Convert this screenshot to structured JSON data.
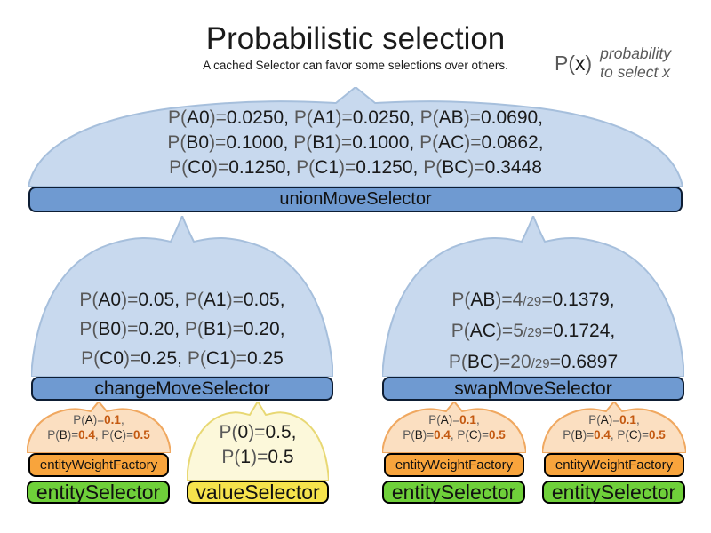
{
  "header": {
    "title": "Probabilistic selection",
    "subtitle": "A cached Selector can favor some selections over others.",
    "legend": {
      "symbol_lines": [
        [
          {
            "t": "P(",
            "s": "g"
          },
          {
            "t": "x",
            "s": "b"
          },
          {
            "t": ")",
            "s": "g"
          }
        ]
      ],
      "note_lines": [
        "probability",
        "to select x"
      ]
    }
  },
  "selectors": {
    "union": {
      "label": "unionMoveSelector",
      "prob_lines": [
        [
          {
            "t": "P(",
            "s": "g"
          },
          {
            "t": "A0",
            "s": "b"
          },
          {
            "t": ")=",
            "s": "g"
          },
          {
            "t": "0.0250, ",
            "s": "b"
          },
          {
            "t": "P(",
            "s": "g"
          },
          {
            "t": "A1",
            "s": "b"
          },
          {
            "t": ")=",
            "s": "g"
          },
          {
            "t": "0.0250, ",
            "s": "b"
          },
          {
            "t": "P(",
            "s": "g"
          },
          {
            "t": "AB",
            "s": "b"
          },
          {
            "t": ")=",
            "s": "g"
          },
          {
            "t": "0.0690,",
            "s": "b"
          }
        ],
        [
          {
            "t": "P(",
            "s": "g"
          },
          {
            "t": "B0",
            "s": "b"
          },
          {
            "t": ")=",
            "s": "g"
          },
          {
            "t": "0.1000, ",
            "s": "b"
          },
          {
            "t": "P(",
            "s": "g"
          },
          {
            "t": "B1",
            "s": "b"
          },
          {
            "t": ")=",
            "s": "g"
          },
          {
            "t": "0.1000, ",
            "s": "b"
          },
          {
            "t": "P(",
            "s": "g"
          },
          {
            "t": "AC",
            "s": "b"
          },
          {
            "t": ")=",
            "s": "g"
          },
          {
            "t": "0.0862,",
            "s": "b"
          }
        ],
        [
          {
            "t": "P(",
            "s": "g"
          },
          {
            "t": "C0",
            "s": "b"
          },
          {
            "t": ")=",
            "s": "g"
          },
          {
            "t": "0.1250, ",
            "s": "b"
          },
          {
            "t": "P(",
            "s": "g"
          },
          {
            "t": "C1",
            "s": "b"
          },
          {
            "t": ")=",
            "s": "g"
          },
          {
            "t": "0.1250, ",
            "s": "b"
          },
          {
            "t": "P(",
            "s": "g"
          },
          {
            "t": "BC",
            "s": "b"
          },
          {
            "t": ")=",
            "s": "g"
          },
          {
            "t": "0.3448",
            "s": "b"
          }
        ]
      ]
    },
    "change": {
      "label": "changeMoveSelector",
      "prob_lines": [
        [
          {
            "t": "P(",
            "s": "g"
          },
          {
            "t": "A0",
            "s": "b"
          },
          {
            "t": ")=",
            "s": "g"
          },
          {
            "t": "0.05, ",
            "s": "b"
          },
          {
            "t": "P(",
            "s": "g"
          },
          {
            "t": "A1",
            "s": "b"
          },
          {
            "t": ")=",
            "s": "g"
          },
          {
            "t": "0.05,",
            "s": "b"
          }
        ],
        [
          {
            "t": "P(",
            "s": "g"
          },
          {
            "t": "B0",
            "s": "b"
          },
          {
            "t": ")=",
            "s": "g"
          },
          {
            "t": "0.20, ",
            "s": "b"
          },
          {
            "t": "P(",
            "s": "g"
          },
          {
            "t": "B1",
            "s": "b"
          },
          {
            "t": ")=",
            "s": "g"
          },
          {
            "t": "0.20,",
            "s": "b"
          }
        ],
        [
          {
            "t": "P(",
            "s": "g"
          },
          {
            "t": "C0",
            "s": "b"
          },
          {
            "t": ")=",
            "s": "g"
          },
          {
            "t": "0.25, ",
            "s": "b"
          },
          {
            "t": "P(",
            "s": "g"
          },
          {
            "t": "C1",
            "s": "b"
          },
          {
            "t": ")=",
            "s": "g"
          },
          {
            "t": "0.25",
            "s": "b"
          }
        ]
      ]
    },
    "swap": {
      "label": "swapMoveSelector",
      "prob_lines": [
        [
          {
            "t": "P(",
            "s": "g"
          },
          {
            "t": "AB",
            "s": "b"
          },
          {
            "t": ")=",
            "s": "g"
          },
          {
            "t": "4",
            "s": "g"
          },
          {
            "t": "/29",
            "s": "f"
          },
          {
            "t": "=",
            "s": "g"
          },
          {
            "t": "0.1379,",
            "s": "b"
          }
        ],
        [
          {
            "t": "P(",
            "s": "g"
          },
          {
            "t": "AC",
            "s": "b"
          },
          {
            "t": ")=",
            "s": "g"
          },
          {
            "t": "5",
            "s": "g"
          },
          {
            "t": "/29",
            "s": "f"
          },
          {
            "t": "=",
            "s": "g"
          },
          {
            "t": "0.1724,",
            "s": "b"
          }
        ],
        [
          {
            "t": "P(",
            "s": "g"
          },
          {
            "t": "BC",
            "s": "b"
          },
          {
            "t": ")=",
            "s": "g"
          },
          {
            "t": "20",
            "s": "g"
          },
          {
            "t": "/29",
            "s": "f"
          },
          {
            "t": "=",
            "s": "g"
          },
          {
            "t": "0.6897",
            "s": "b"
          }
        ]
      ]
    },
    "entity_weight_factory": {
      "label": "entityWeightFactory",
      "prob_lines": [
        [
          {
            "t": "P(",
            "s": "g"
          },
          {
            "t": "A",
            "s": "b"
          },
          {
            "t": ")=",
            "s": "g"
          },
          {
            "t": "0.1",
            "s": "o"
          },
          {
            "t": ",",
            "s": "g"
          }
        ],
        [
          {
            "t": "P(",
            "s": "g"
          },
          {
            "t": "B",
            "s": "b"
          },
          {
            "t": ")=",
            "s": "g"
          },
          {
            "t": "0.4",
            "s": "o"
          },
          {
            "t": ", ",
            "s": "g"
          },
          {
            "t": "P(",
            "s": "g"
          },
          {
            "t": "C",
            "s": "b"
          },
          {
            "t": ")=",
            "s": "g"
          },
          {
            "t": "0.5",
            "s": "o"
          }
        ]
      ]
    },
    "entity_selector": {
      "label": "entitySelector"
    },
    "value_selector": {
      "label": "valueSelector",
      "prob_lines": [
        [
          {
            "t": "P(",
            "s": "g"
          },
          {
            "t": "0",
            "s": "b"
          },
          {
            "t": ")=",
            "s": "g"
          },
          {
            "t": "0.5,",
            "s": "b"
          }
        ],
        [
          {
            "t": "P(",
            "s": "g"
          },
          {
            "t": "1",
            "s": "b"
          },
          {
            "t": ")=",
            "s": "g"
          },
          {
            "t": "0.5",
            "s": "b"
          }
        ]
      ]
    }
  },
  "colors": {
    "dome_blue": "#c8d9ee",
    "dome_blue_border": "#a6bfdc",
    "dome_orange": "#fbdfc1",
    "dome_orange_border": "#f0a860",
    "dome_yellow": "#fcf8da",
    "dome_yellow_border": "#e8d874",
    "bar_blue": "#6f9ad1",
    "bar_orange": "#f8a43c",
    "bar_green": "#6fd03a",
    "bar_yellow": "#f5e34c",
    "text_gray": "#595959",
    "text_black": "#1a1a1a",
    "value_orange": "#c45911"
  }
}
